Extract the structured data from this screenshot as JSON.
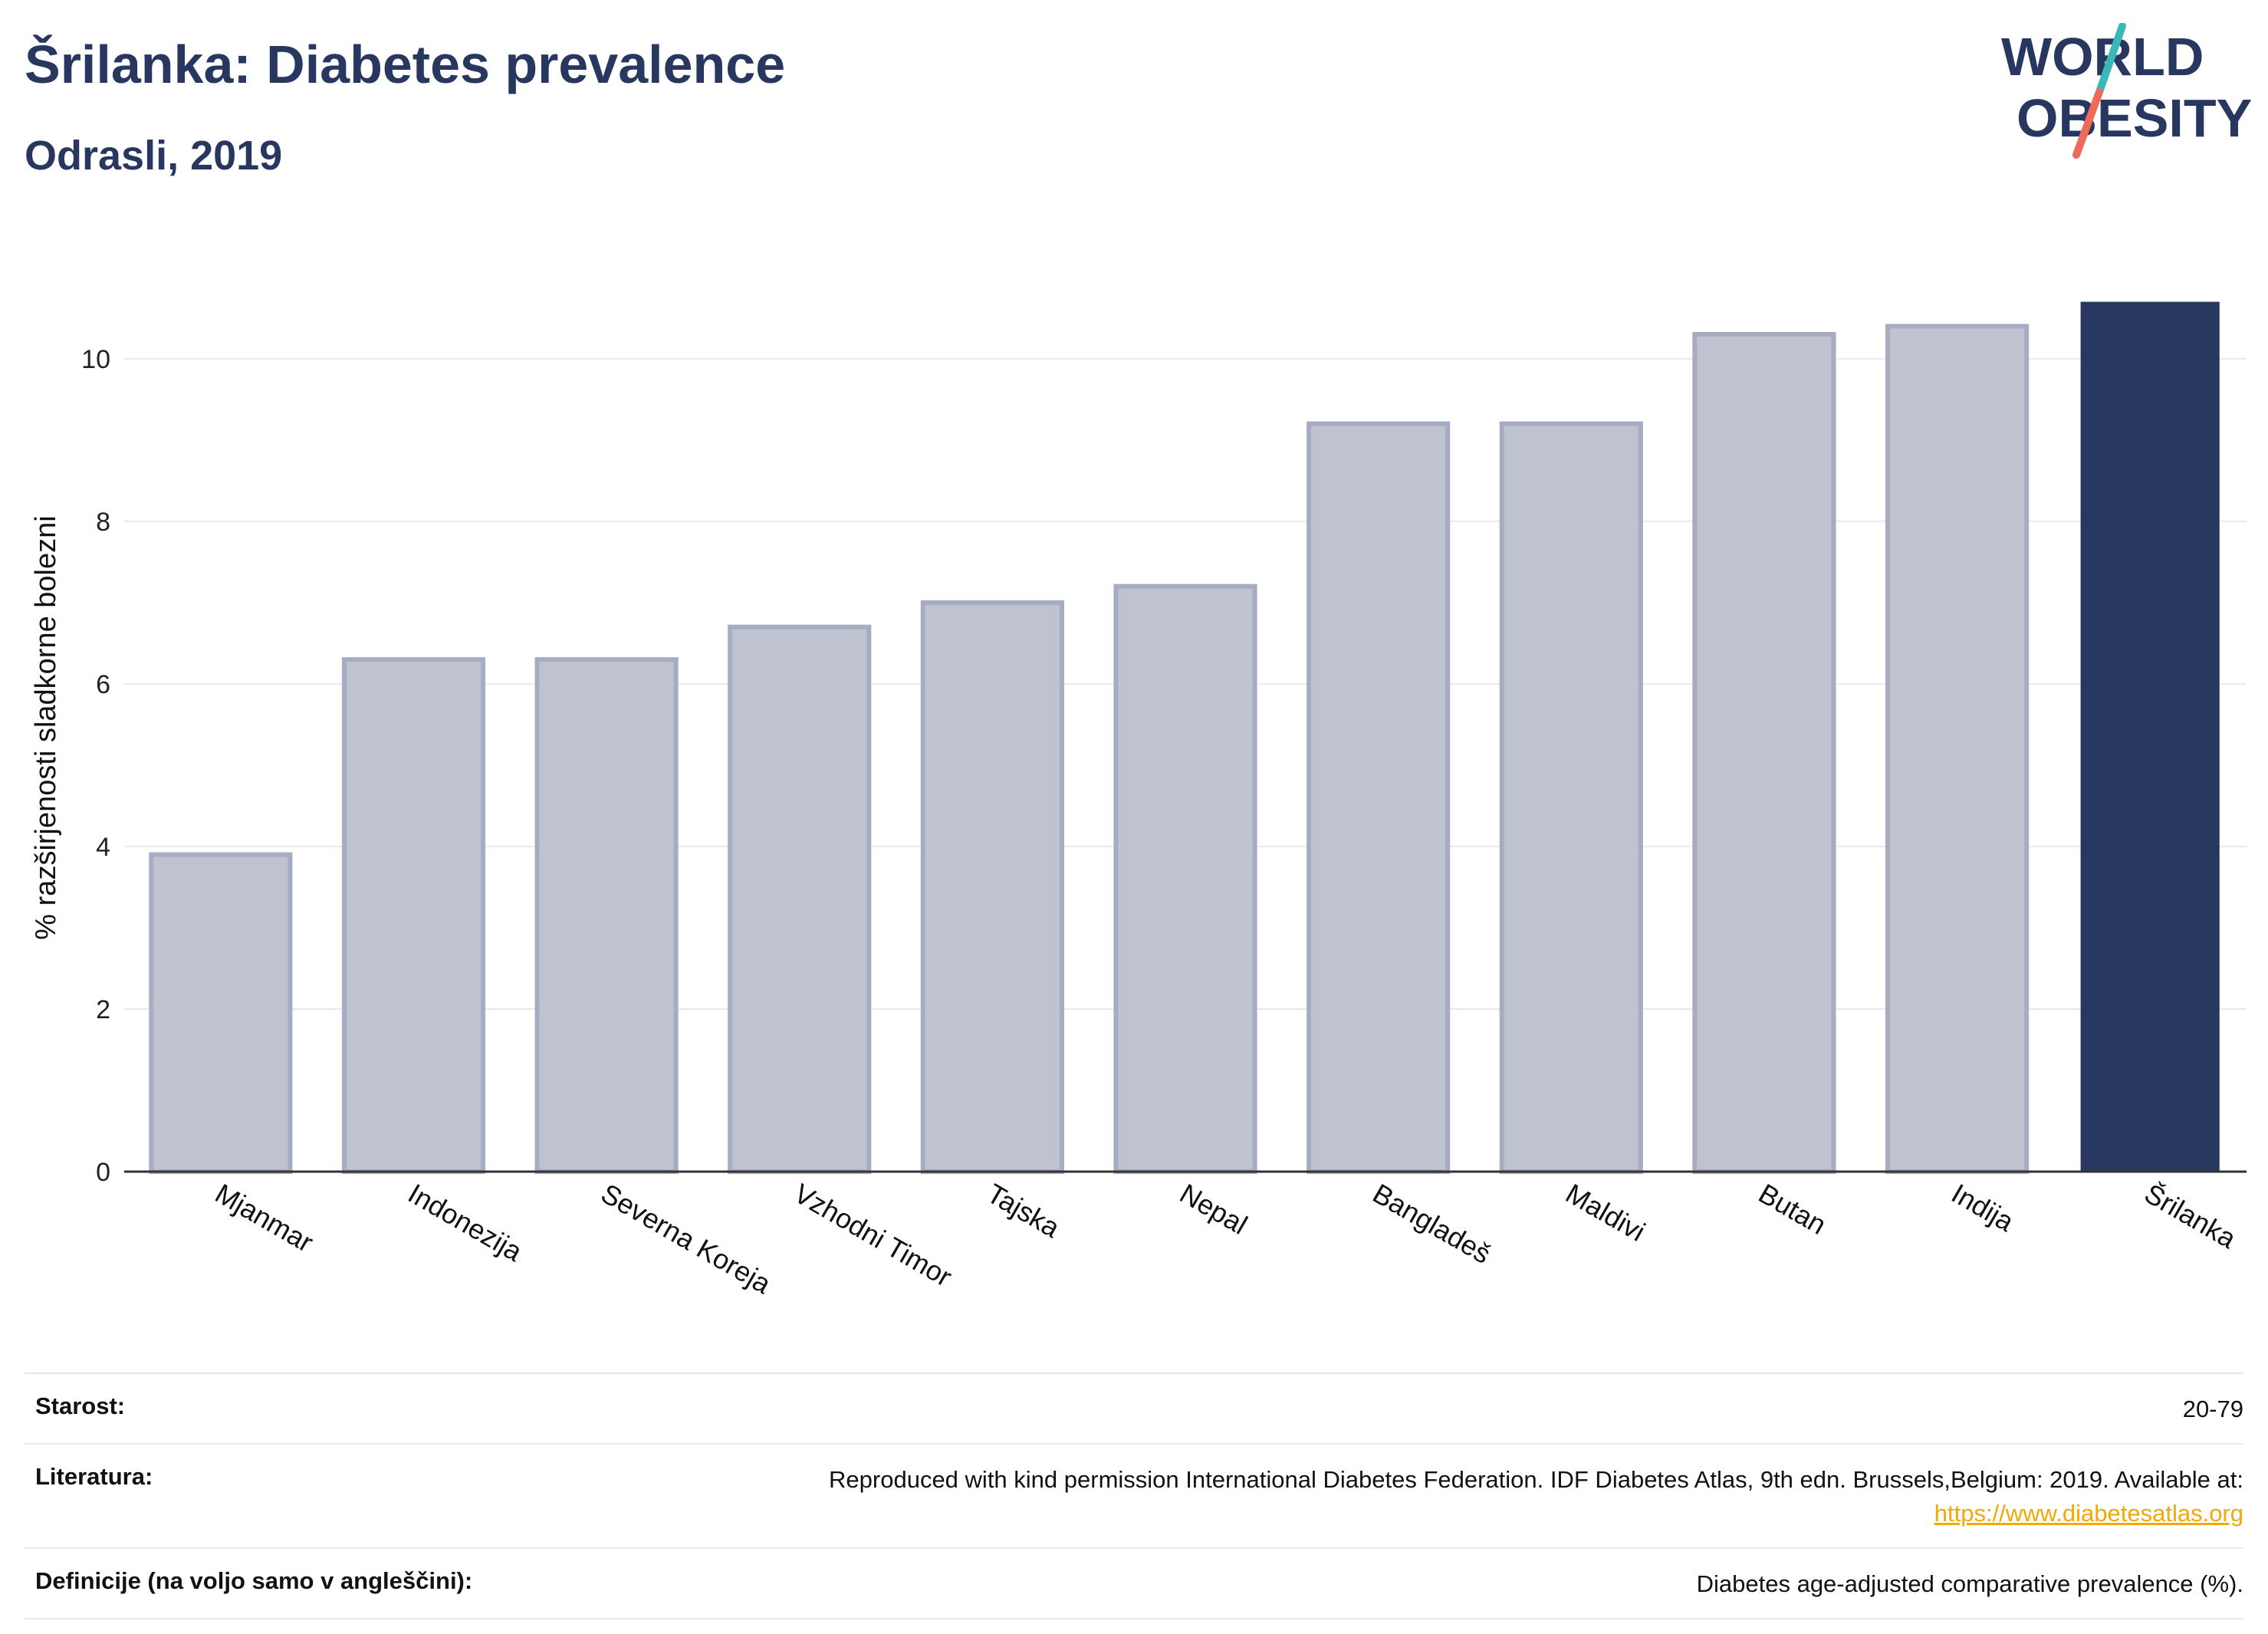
{
  "header": {
    "title": "Šrilanka: Diabetes prevalence",
    "subtitle": "Odrasli, 2019"
  },
  "logo": {
    "line1": "WORLD",
    "line2": "OBESITY"
  },
  "chart_data": {
    "type": "bar",
    "ylabel": "% razširjenosti sladkorne bolezni",
    "categories": [
      "Mjanmar",
      "Indonezija",
      "Severna Koreja",
      "Vzhodni Timor",
      "Tajska",
      "Nepal",
      "Bangladeš",
      "Maldivi",
      "Butan",
      "Indija",
      "Šrilanka"
    ],
    "values": [
      3.9,
      6.3,
      6.3,
      6.7,
      7.0,
      7.2,
      9.2,
      9.2,
      10.3,
      10.4,
      10.7
    ],
    "highlight": "Šrilanka",
    "ylim": [
      0,
      11.3
    ],
    "yticks": [
      0,
      2,
      4,
      6,
      8,
      10
    ],
    "grid": true,
    "colors": {
      "bar": "#bfc3d0",
      "bar_border": "#a6adc2",
      "highlight": "#283760"
    }
  },
  "footer": {
    "age_label": "Starost:",
    "age_value": "20-79",
    "source_label": "Literatura:",
    "source_text": "Reproduced with kind permission International Diabetes Federation. IDF Diabetes Atlas, 9th edn. Brussels,Belgium: 2019. Available at:",
    "source_link": "https://www.diabetesatlas.org",
    "definition_label": "Definicije (na voljo samo v angleščini):",
    "definition_value": "Diabetes age-adjusted comparative prevalence (%)."
  }
}
